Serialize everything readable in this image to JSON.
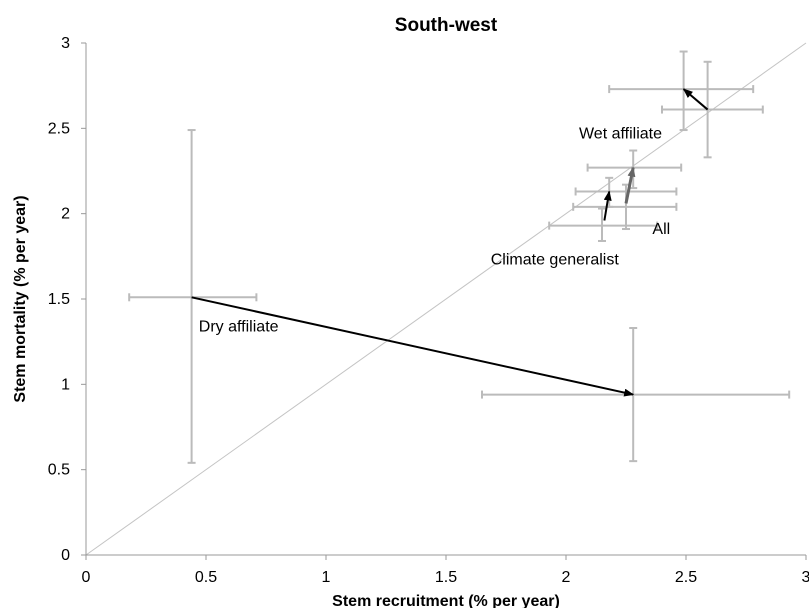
{
  "chart_data": {
    "type": "scatter",
    "title": "South-west",
    "xlabel": "Stem recruitment (% per year)",
    "ylabel": "Stem mortality (% per year)",
    "xlim": [
      0,
      3
    ],
    "ylim": [
      0,
      3
    ],
    "xticks": [
      "0",
      "0.5",
      "1",
      "1.5",
      "2",
      "2.5",
      "3"
    ],
    "yticks": [
      "0",
      "0.5",
      "1",
      "1.5",
      "2",
      "2.5",
      "3"
    ],
    "grid": false,
    "reference_line": {
      "from": [
        0,
        0
      ],
      "to": [
        3,
        3
      ]
    },
    "points": [
      {
        "group": "Dry affiliate",
        "period": "start",
        "x": 0.44,
        "y": 1.51,
        "xerr": [
          0.18,
          0.71
        ],
        "yerr": [
          0.54,
          2.49
        ]
      },
      {
        "group": "Dry affiliate",
        "period": "end",
        "x": 2.28,
        "y": 0.94,
        "xerr": [
          1.65,
          2.93
        ],
        "yerr": [
          0.55,
          1.33
        ]
      },
      {
        "group": "Wet affiliate",
        "period": "start",
        "x": 2.59,
        "y": 2.61,
        "xerr": [
          2.4,
          2.82
        ],
        "yerr": [
          2.33,
          2.89
        ]
      },
      {
        "group": "Wet affiliate",
        "period": "end",
        "x": 2.49,
        "y": 2.73,
        "xerr": [
          2.18,
          2.78
        ],
        "yerr": [
          2.49,
          2.95
        ]
      },
      {
        "group": "Climate generalist",
        "period": "start",
        "x": 2.15,
        "y": 1.93,
        "xerr": [
          1.93,
          2.38
        ],
        "yerr": [
          1.84,
          2.03
        ]
      },
      {
        "group": "Climate generalist",
        "period": "end",
        "x": 2.18,
        "y": 2.13,
        "xerr": [
          2.04,
          2.46
        ],
        "yerr": [
          2.04,
          2.21
        ]
      },
      {
        "group": "All",
        "period": "start",
        "x": 2.25,
        "y": 2.04,
        "xerr": [
          2.03,
          2.46
        ],
        "yerr": [
          1.91,
          2.17
        ]
      },
      {
        "group": "All",
        "period": "end",
        "x": 2.28,
        "y": 2.27,
        "xerr": [
          2.09,
          2.48
        ],
        "yerr": [
          2.15,
          2.37
        ]
      }
    ],
    "arrows": [
      {
        "group": "Dry affiliate",
        "from": [
          0.44,
          1.51
        ],
        "to": [
          2.28,
          0.94
        ],
        "color": "#000000"
      },
      {
        "group": "Wet affiliate",
        "from": [
          2.59,
          2.61
        ],
        "to": [
          2.49,
          2.73
        ],
        "color": "#000000"
      },
      {
        "group": "Climate generalist",
        "from": [
          2.16,
          1.96
        ],
        "to": [
          2.18,
          2.13
        ],
        "color": "#000000"
      },
      {
        "group": "All",
        "from": [
          2.25,
          2.06
        ],
        "to": [
          2.28,
          2.27
        ],
        "color": "#666666"
      }
    ],
    "annotations": [
      {
        "text": "Dry affiliate",
        "x": 0.47,
        "y": 1.34,
        "anchor": "start"
      },
      {
        "text": "Wet affiliate",
        "x": 2.4,
        "y": 2.47,
        "anchor": "end"
      },
      {
        "text": "Climate generalist",
        "x": 2.22,
        "y": 1.73,
        "anchor": "end"
      },
      {
        "text": "All",
        "x": 2.36,
        "y": 1.91,
        "anchor": "start"
      }
    ]
  },
  "colors": {
    "error_bar": "#bbbbbb",
    "reference_line": "#c4c4c4",
    "axis": "#999999",
    "arrow_dark": "#000000",
    "arrow_grey": "#666666"
  }
}
